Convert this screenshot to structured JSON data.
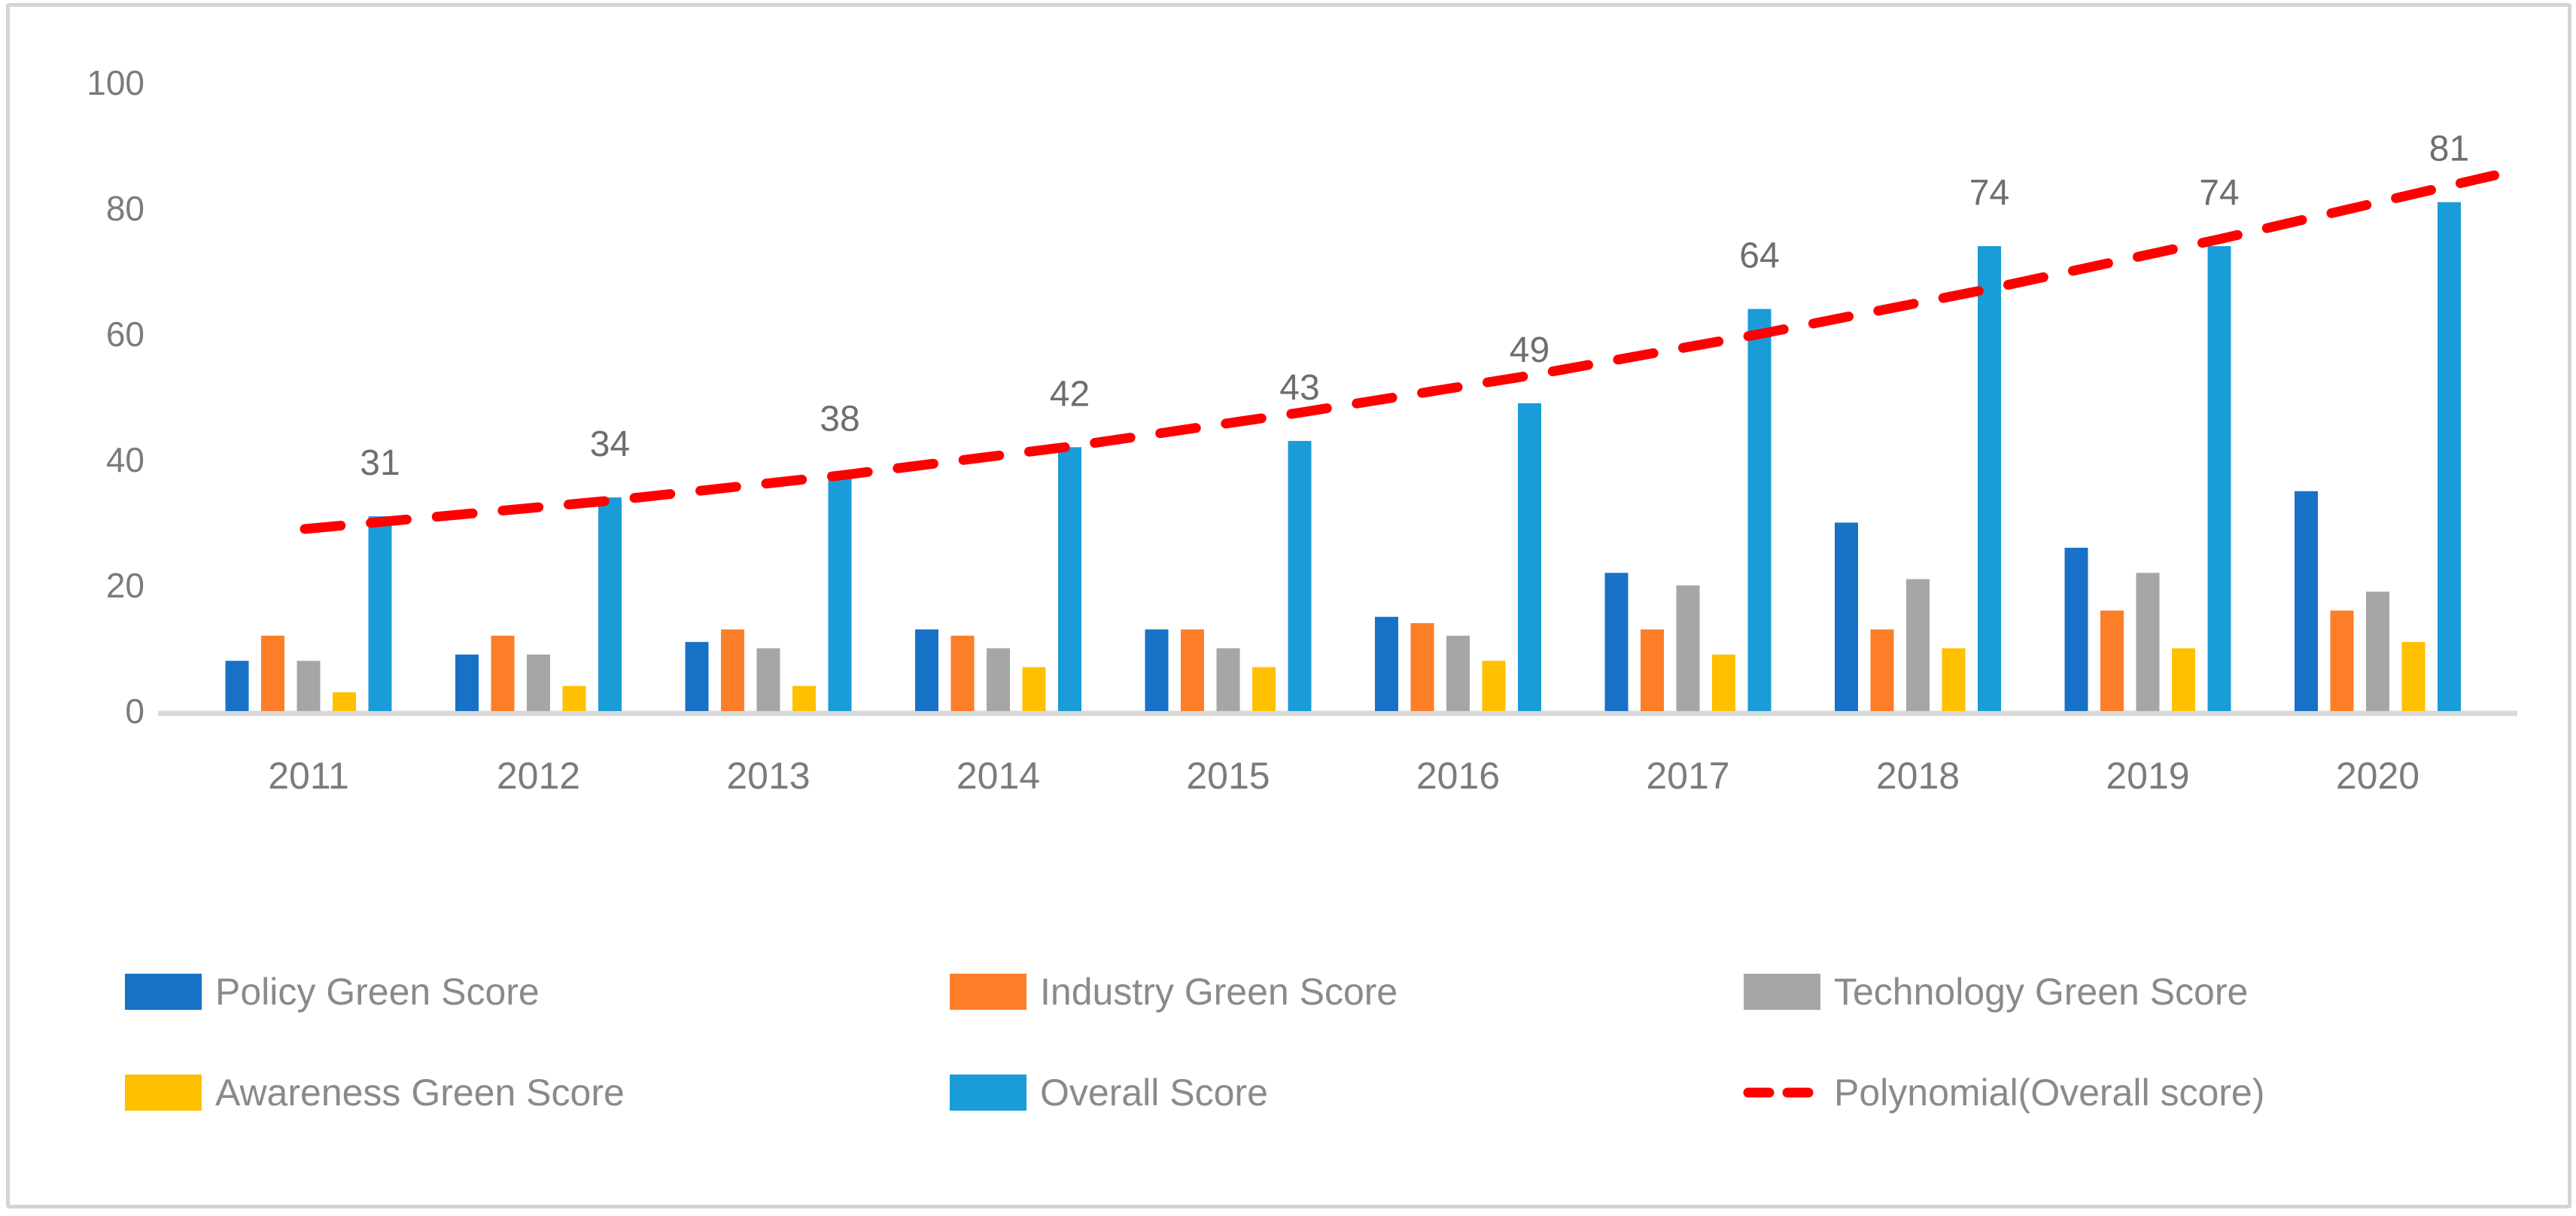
{
  "chart_data": {
    "type": "bar",
    "title": "",
    "xlabel": "",
    "ylabel": "",
    "categories": [
      "2011",
      "2012",
      "2013",
      "2014",
      "2015",
      "2016",
      "2017",
      "2018",
      "2019",
      "2020"
    ],
    "y_ticks": [
      0,
      20,
      40,
      60,
      80,
      100
    ],
    "ylim": [
      0,
      100
    ],
    "grid": "off",
    "legend_position": "bottom",
    "axis_line_color": "#d9d9d9",
    "text_color": "#7b7b7b",
    "data_label_color": "#6e6e6e",
    "series": [
      {
        "name": "Policy Green Score",
        "color": "#1772c7",
        "values": [
          8,
          9,
          11,
          13,
          13,
          15,
          22,
          30,
          26,
          35
        ]
      },
      {
        "name": "Industry Green Score",
        "color": "#fd7e28",
        "values": [
          12,
          12,
          13,
          12,
          13,
          14,
          13,
          13,
          16,
          16
        ]
      },
      {
        "name": "Technology Green Score",
        "color": "#a6a6a6",
        "values": [
          8,
          9,
          10,
          10,
          10,
          12,
          20,
          21,
          22,
          19
        ]
      },
      {
        "name": "Awareness Green Score",
        "color": "#ffc000",
        "values": [
          3,
          4,
          4,
          7,
          7,
          8,
          9,
          10,
          10,
          11
        ]
      },
      {
        "name": "Overall Score",
        "color": "#1a9cd8",
        "values": [
          31,
          34,
          38,
          42,
          43,
          49,
          64,
          74,
          74,
          81
        ],
        "show_data_labels": true
      }
    ],
    "overall_data_labels": [
      "31",
      "34",
      "38",
      "42",
      "43",
      "49",
      "64",
      "74",
      "74",
      "81"
    ],
    "trendline": {
      "name": "Polynomial(Overall score)",
      "color": "#ff0000",
      "style": "dashed",
      "fitted_values": [
        30.1,
        33.5,
        37.5,
        42.1,
        47.5,
        53.4,
        60.0,
        67.2,
        75.1,
        83.6
      ]
    },
    "legend": [
      {
        "label": "Policy Green Score",
        "swatch": "box",
        "color": "#1772c7"
      },
      {
        "label": "Industry Green Score",
        "swatch": "box",
        "color": "#fd7e28"
      },
      {
        "label": "Technology Green Score",
        "swatch": "box",
        "color": "#a6a6a6"
      },
      {
        "label": "Awareness Green Score",
        "swatch": "box",
        "color": "#ffc000"
      },
      {
        "label": "Overall Score",
        "swatch": "box",
        "color": "#1a9cd8"
      },
      {
        "label": "Polynomial(Overall score)",
        "swatch": "dash",
        "color": "#ff0000"
      }
    ]
  }
}
